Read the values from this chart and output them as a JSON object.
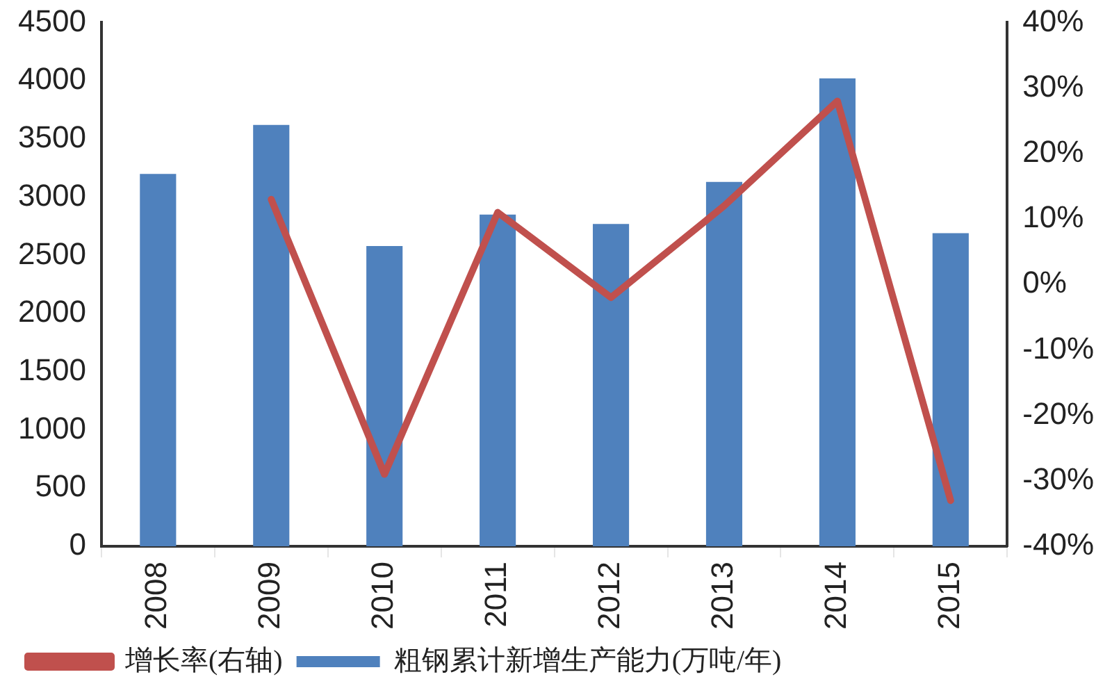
{
  "chart_data": {
    "type": "bar",
    "categories": [
      "2008",
      "2009",
      "2010",
      "2011",
      "2012",
      "2013",
      "2014",
      "2015"
    ],
    "series": [
      {
        "name": "粗钢累计新增生产能力(万吨/年)",
        "color": "#4f81bd",
        "values": [
          3200,
          3620,
          2580,
          2850,
          2770,
          3130,
          4020,
          2690
        ]
      },
      {
        "name": "增长率(右轴)",
        "type": "line",
        "axis": "y2",
        "color": "#c0504d",
        "values": [
          null,
          13,
          -29,
          11,
          -2,
          12,
          28,
          -33
        ]
      }
    ],
    "ylim": [
      0,
      4500
    ],
    "yticks": [
      0,
      500,
      1000,
      1500,
      2000,
      2500,
      3000,
      3500,
      4000,
      4500
    ],
    "y2lim": [
      -40,
      40
    ],
    "y2ticks": [
      {
        "value": -40,
        "label": "-40%"
      },
      {
        "value": -30,
        "label": "-30%"
      },
      {
        "value": -20,
        "label": "-20%"
      },
      {
        "value": -10,
        "label": "-10%"
      },
      {
        "value": 0,
        "label": "0%"
      },
      {
        "value": 10,
        "label": "10%"
      },
      {
        "value": 20,
        "label": "20%"
      },
      {
        "value": 30,
        "label": "30%"
      },
      {
        "value": 40,
        "label": "40%"
      }
    ],
    "grid": false,
    "legend": "bottom",
    "marker": "none"
  }
}
